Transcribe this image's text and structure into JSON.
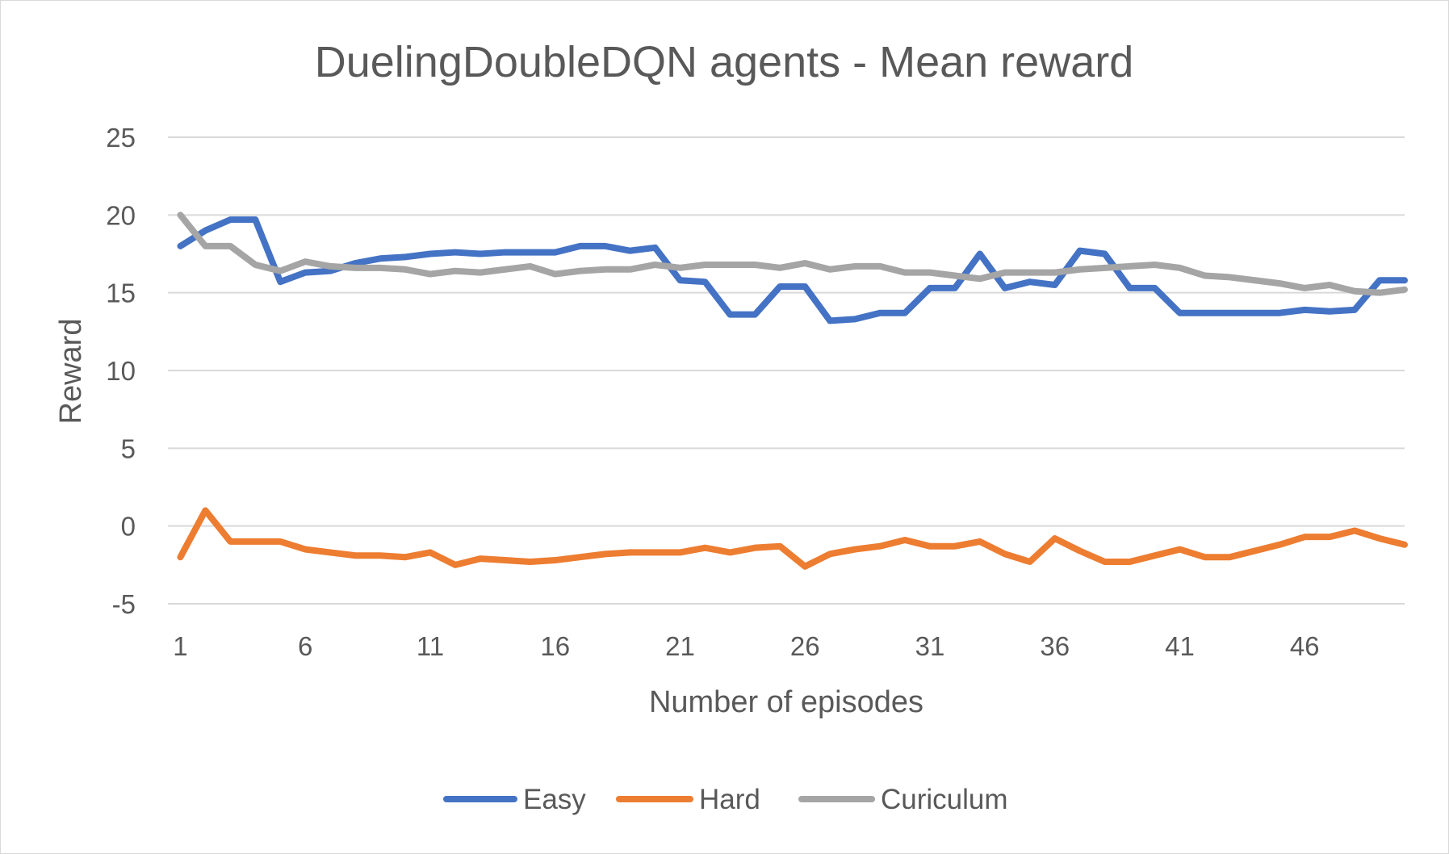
{
  "chart_data": {
    "type": "line",
    "title": "DuelingDoubleDQN agents - Mean reward",
    "xlabel": "Number of episodes",
    "ylabel": "Reward",
    "x": [
      1,
      2,
      3,
      4,
      5,
      6,
      7,
      8,
      9,
      10,
      11,
      12,
      13,
      14,
      15,
      16,
      17,
      18,
      19,
      20,
      21,
      22,
      23,
      24,
      25,
      26,
      27,
      28,
      29,
      30,
      31,
      32,
      33,
      34,
      35,
      36,
      37,
      38,
      39,
      40,
      41,
      42,
      43,
      44,
      45,
      46,
      47,
      48,
      49,
      50
    ],
    "x_tick_labels": [
      "1",
      "6",
      "11",
      "16",
      "21",
      "26",
      "31",
      "36",
      "41",
      "46"
    ],
    "x_tick_values": [
      1,
      6,
      11,
      16,
      21,
      26,
      31,
      36,
      41,
      46
    ],
    "y_tick_labels": [
      "25",
      "20",
      "15",
      "10",
      "5",
      "0",
      "-5"
    ],
    "y_tick_values": [
      25,
      20,
      15,
      10,
      5,
      0,
      -5
    ],
    "ylim": [
      -5,
      25
    ],
    "grid": true,
    "legend_position": "bottom",
    "series": [
      {
        "name": "Easy",
        "color": "#4472c4",
        "values": [
          18.0,
          19.0,
          19.7,
          19.7,
          15.7,
          16.3,
          16.4,
          16.9,
          17.2,
          17.3,
          17.5,
          17.6,
          17.5,
          17.6,
          17.6,
          17.6,
          18.0,
          18.0,
          17.7,
          17.9,
          15.8,
          15.7,
          13.6,
          13.6,
          15.4,
          15.4,
          13.2,
          13.3,
          13.7,
          13.7,
          15.3,
          15.3,
          17.5,
          15.3,
          15.7,
          15.5,
          17.7,
          17.5,
          15.3,
          15.3,
          13.7,
          13.7,
          13.7,
          13.7,
          13.7,
          13.9,
          13.8,
          13.9,
          15.8,
          15.8
        ]
      },
      {
        "name": "Hard",
        "color": "#ed7d31",
        "values": [
          -2.0,
          1.0,
          -1.0,
          -1.0,
          -1.0,
          -1.5,
          -1.7,
          -1.9,
          -1.9,
          -2.0,
          -1.7,
          -2.5,
          -2.1,
          -2.2,
          -2.3,
          -2.2,
          -2.0,
          -1.8,
          -1.7,
          -1.7,
          -1.7,
          -1.4,
          -1.7,
          -1.4,
          -1.3,
          -2.6,
          -1.8,
          -1.5,
          -1.3,
          -0.9,
          -1.3,
          -1.3,
          -1.0,
          -1.8,
          -2.3,
          -0.8,
          -1.6,
          -2.3,
          -2.3,
          -1.9,
          -1.5,
          -2.0,
          -2.0,
          -1.6,
          -1.2,
          -0.7,
          -0.7,
          -0.3,
          -0.8,
          -1.2
        ]
      },
      {
        "name": "Curiculum",
        "color": "#a5a5a5",
        "values": [
          20.0,
          18.0,
          18.0,
          16.8,
          16.4,
          17.0,
          16.7,
          16.6,
          16.6,
          16.5,
          16.2,
          16.4,
          16.3,
          16.5,
          16.7,
          16.2,
          16.4,
          16.5,
          16.5,
          16.8,
          16.6,
          16.8,
          16.8,
          16.8,
          16.6,
          16.9,
          16.5,
          16.7,
          16.7,
          16.3,
          16.3,
          16.1,
          15.9,
          16.3,
          16.3,
          16.3,
          16.5,
          16.6,
          16.7,
          16.8,
          16.6,
          16.1,
          16.0,
          15.8,
          15.6,
          15.3,
          15.5,
          15.1,
          15.0,
          15.2
        ]
      }
    ]
  }
}
